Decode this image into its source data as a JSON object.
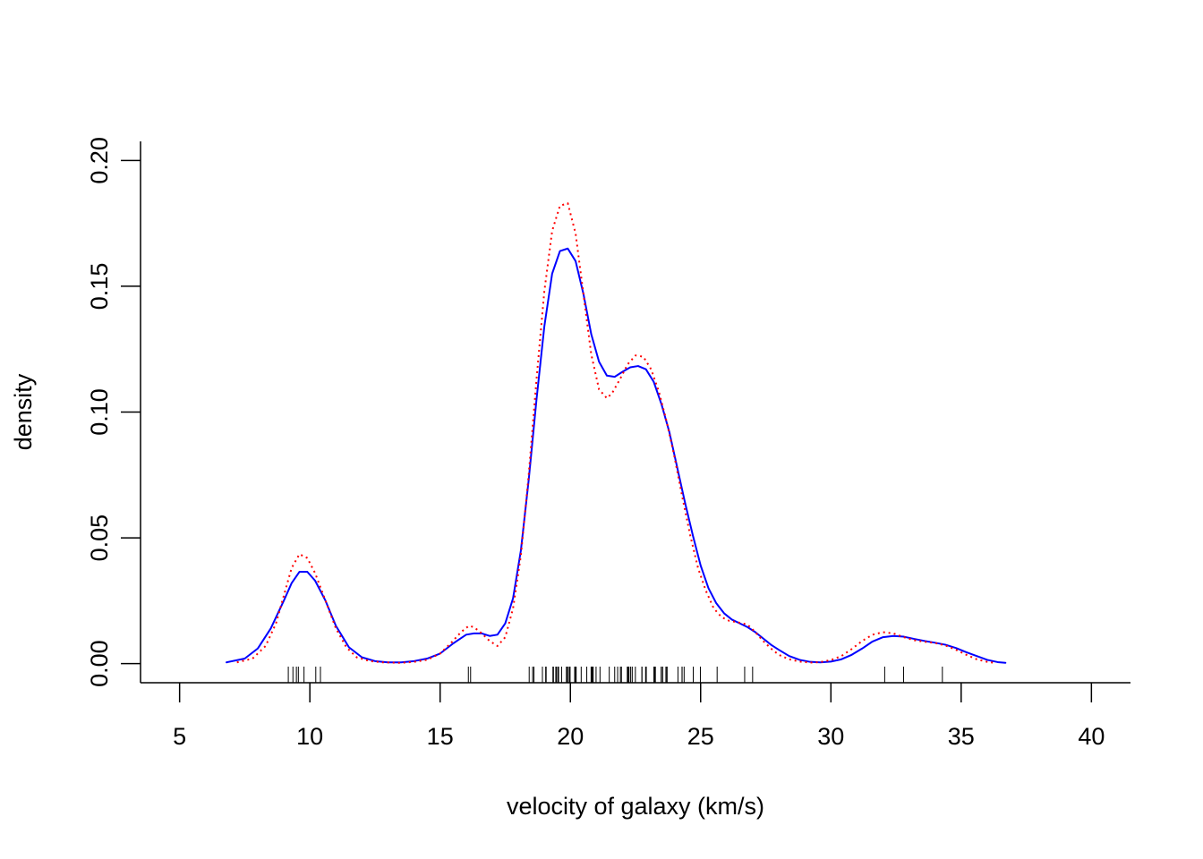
{
  "chart_data": {
    "type": "line",
    "title": "",
    "xlabel": "velocity of galaxy (km/s)",
    "ylabel": "density",
    "xlim": [
      3.5,
      41.5
    ],
    "ylim": [
      -0.0076,
      0.2076
    ],
    "x_ticks": [
      5,
      10,
      15,
      20,
      25,
      30,
      35,
      40
    ],
    "y_ticks": [
      0.0,
      0.05,
      0.1,
      0.15,
      0.2
    ],
    "x_tick_labels": [
      "5",
      "10",
      "15",
      "20",
      "25",
      "30",
      "35",
      "40"
    ],
    "y_tick_labels": [
      "0.00",
      "0.05",
      "0.10",
      "0.15",
      "0.20"
    ],
    "grid": false,
    "legend": "none",
    "series": [
      {
        "color": "#0000ff",
        "line_style": "solid",
        "x": [
          6.8,
          7.5,
          8.0,
          8.5,
          9.0,
          9.3,
          9.6,
          9.9,
          10.2,
          10.6,
          11.0,
          11.5,
          12.0,
          12.5,
          13.0,
          13.5,
          14.0,
          14.5,
          15.0,
          15.5,
          16.0,
          16.3,
          16.6,
          16.9,
          17.2,
          17.5,
          17.8,
          18.1,
          18.4,
          18.7,
          19.0,
          19.3,
          19.6,
          19.9,
          20.2,
          20.5,
          20.8,
          21.1,
          21.4,
          21.7,
          22.0,
          22.3,
          22.6,
          22.9,
          23.2,
          23.5,
          23.8,
          24.1,
          24.4,
          24.7,
          25.0,
          25.3,
          25.6,
          25.9,
          26.2,
          26.5,
          26.8,
          27.1,
          27.4,
          27.7,
          28.0,
          28.4,
          28.8,
          29.2,
          29.6,
          30.0,
          30.4,
          30.8,
          31.2,
          31.6,
          32.0,
          32.4,
          32.8,
          33.2,
          33.6,
          34.0,
          34.4,
          34.8,
          35.2,
          35.6,
          36.0,
          36.4,
          36.7
        ],
        "y": [
          0.0005,
          0.002,
          0.006,
          0.014,
          0.025,
          0.032,
          0.0365,
          0.0365,
          0.033,
          0.025,
          0.015,
          0.0065,
          0.0025,
          0.001,
          0.0005,
          0.0005,
          0.001,
          0.002,
          0.004,
          0.008,
          0.0115,
          0.012,
          0.012,
          0.011,
          0.0115,
          0.016,
          0.026,
          0.045,
          0.073,
          0.105,
          0.134,
          0.155,
          0.164,
          0.165,
          0.16,
          0.147,
          0.131,
          0.12,
          0.1145,
          0.114,
          0.116,
          0.1178,
          0.1183,
          0.117,
          0.112,
          0.103,
          0.092,
          0.078,
          0.064,
          0.051,
          0.039,
          0.03,
          0.024,
          0.02,
          0.0175,
          0.016,
          0.0145,
          0.0125,
          0.01,
          0.0075,
          0.0055,
          0.003,
          0.0015,
          0.0007,
          0.0005,
          0.0008,
          0.0017,
          0.0035,
          0.006,
          0.0088,
          0.0105,
          0.011,
          0.0107,
          0.0098,
          0.009,
          0.0083,
          0.0075,
          0.0062,
          0.0045,
          0.003,
          0.0015,
          0.0006,
          0.0003
        ]
      },
      {
        "color": "#ff0000",
        "line_style": "dotted",
        "x": [
          7.2,
          7.8,
          8.3,
          8.7,
          9.0,
          9.3,
          9.6,
          9.9,
          10.2,
          10.6,
          11.0,
          11.4,
          11.8,
          12.3,
          12.8,
          13.5,
          14.0,
          14.5,
          15.0,
          15.4,
          15.8,
          16.1,
          16.3,
          16.6,
          16.9,
          17.2,
          17.5,
          17.8,
          18.1,
          18.4,
          18.7,
          19.0,
          19.3,
          19.6,
          19.9,
          20.2,
          20.5,
          20.8,
          21.1,
          21.4,
          21.6,
          21.9,
          22.2,
          22.5,
          22.8,
          23.1,
          23.4,
          23.7,
          24.0,
          24.3,
          24.6,
          24.9,
          25.2,
          25.5,
          25.8,
          26.1,
          26.4,
          26.8,
          27.1,
          27.4,
          27.7,
          28.0,
          28.4,
          28.8,
          29.2,
          29.6,
          30.0,
          30.4,
          30.8,
          31.2,
          31.6,
          32.0,
          32.4,
          32.8,
          33.2,
          33.6,
          34.0,
          34.4,
          34.8,
          35.2,
          35.6,
          36.0,
          36.3
        ],
        "y": [
          0.0005,
          0.002,
          0.007,
          0.016,
          0.027,
          0.038,
          0.0435,
          0.042,
          0.036,
          0.025,
          0.014,
          0.0065,
          0.0025,
          0.001,
          0.0005,
          0.0003,
          0.0007,
          0.0015,
          0.004,
          0.008,
          0.0125,
          0.015,
          0.0145,
          0.012,
          0.009,
          0.007,
          0.0105,
          0.022,
          0.043,
          0.075,
          0.113,
          0.148,
          0.172,
          0.182,
          0.183,
          0.171,
          0.147,
          0.123,
          0.109,
          0.1055,
          0.1075,
          0.113,
          0.119,
          0.1225,
          0.122,
          0.117,
          0.108,
          0.096,
          0.082,
          0.066,
          0.051,
          0.038,
          0.029,
          0.022,
          0.0185,
          0.017,
          0.0165,
          0.0155,
          0.0125,
          0.009,
          0.006,
          0.0035,
          0.0017,
          0.0008,
          0.0004,
          0.0006,
          0.0014,
          0.003,
          0.0058,
          0.009,
          0.0115,
          0.0125,
          0.012,
          0.0105,
          0.0093,
          0.0087,
          0.0082,
          0.0072,
          0.0055,
          0.0035,
          0.0017,
          0.0007,
          0.0003
        ]
      }
    ],
    "rug": [
      9.172,
      9.35,
      9.483,
      9.558,
      9.775,
      10.227,
      10.406,
      16.084,
      16.17,
      18.419,
      18.552,
      18.6,
      18.927,
      19.052,
      19.07,
      19.33,
      19.343,
      19.349,
      19.44,
      19.473,
      19.529,
      19.541,
      19.547,
      19.663,
      19.846,
      19.856,
      19.863,
      19.914,
      19.918,
      19.973,
      19.989,
      20.166,
      20.175,
      20.179,
      20.196,
      20.215,
      20.221,
      20.415,
      20.629,
      20.795,
      20.821,
      20.846,
      20.875,
      20.986,
      21.137,
      21.492,
      21.701,
      21.814,
      21.921,
      21.96,
      22.185,
      22.209,
      22.242,
      22.249,
      22.314,
      22.374,
      22.495,
      22.746,
      22.747,
      22.888,
      22.914,
      23.206,
      23.241,
      23.263,
      23.484,
      23.538,
      23.542,
      23.666,
      23.706,
      23.711,
      24.129,
      24.285,
      24.289,
      24.366,
      24.717,
      24.99,
      25.633,
      26.69,
      26.995,
      32.065,
      32.789,
      34.279
    ]
  }
}
